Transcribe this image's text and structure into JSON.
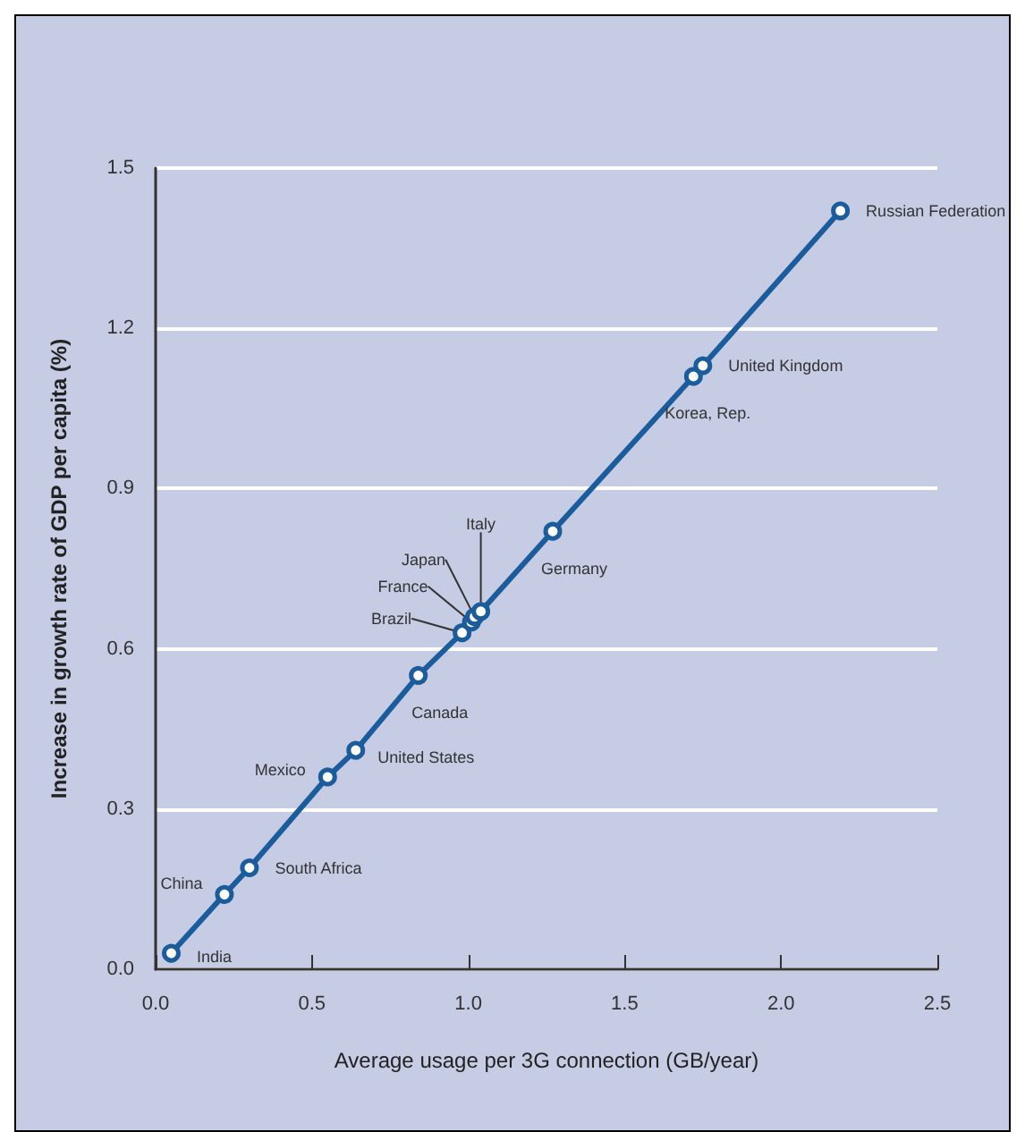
{
  "chart_data": {
    "type": "line",
    "xlabel": "Average usage per 3G connection (GB/year)",
    "ylabel": "Increase in growth rate of GDP per capita (%)",
    "x": [
      0.05,
      0.22,
      0.3,
      0.55,
      0.64,
      0.84,
      0.98,
      1.01,
      1.02,
      1.04,
      1.27,
      1.72,
      1.75,
      2.19
    ],
    "values": [
      0.03,
      0.14,
      0.19,
      0.36,
      0.41,
      0.55,
      0.63,
      0.65,
      0.66,
      0.67,
      0.82,
      1.11,
      1.13,
      1.42
    ],
    "color": "#1a5c9c",
    "marker": "circle",
    "line_style": "solid",
    "grid": "y",
    "xlim": [
      0,
      2.5
    ],
    "xticks": [
      {
        "value": 0,
        "label": "0.0"
      },
      {
        "value": 0.5,
        "label": "0.5"
      },
      {
        "value": 1,
        "label": "1.0"
      },
      {
        "value": 1.5,
        "label": "1.5"
      },
      {
        "value": 2,
        "label": "2.0"
      },
      {
        "value": 2.5,
        "label": "2.5"
      }
    ],
    "ylim": [
      0,
      1.5
    ],
    "yticks": [
      {
        "value": 0,
        "label": "0.0"
      },
      {
        "value": 0.3,
        "label": "0.3"
      },
      {
        "value": 0.6,
        "label": "0.6"
      },
      {
        "value": 0.9,
        "label": "0.9"
      },
      {
        "value": 1.2,
        "label": "1.2"
      },
      {
        "value": 1.5,
        "label": "1.5"
      }
    ],
    "annotations": [
      {
        "text": "India",
        "x": 0.05,
        "y": 0.03
      },
      {
        "text": "China",
        "x": 0.22,
        "y": 0.14
      },
      {
        "text": "South Africa",
        "x": 0.3,
        "y": 0.19
      },
      {
        "text": "Mexico",
        "x": 0.55,
        "y": 0.36
      },
      {
        "text": "United States",
        "x": 0.64,
        "y": 0.41
      },
      {
        "text": "Canada",
        "x": 0.84,
        "y": 0.55
      },
      {
        "text": "Brazil",
        "x": 0.98,
        "y": 0.63
      },
      {
        "text": "France",
        "x": 1.01,
        "y": 0.65
      },
      {
        "text": "Japan",
        "x": 1.02,
        "y": 0.66
      },
      {
        "text": "Italy",
        "x": 1.04,
        "y": 0.67
      },
      {
        "text": "Germany",
        "x": 1.27,
        "y": 0.82
      },
      {
        "text": "Korea, Rep.",
        "x": 1.72,
        "y": 1.11
      },
      {
        "text": "United Kingdom",
        "x": 1.75,
        "y": 1.13
      },
      {
        "text": "Russian Federation",
        "x": 2.19,
        "y": 1.42
      }
    ]
  }
}
